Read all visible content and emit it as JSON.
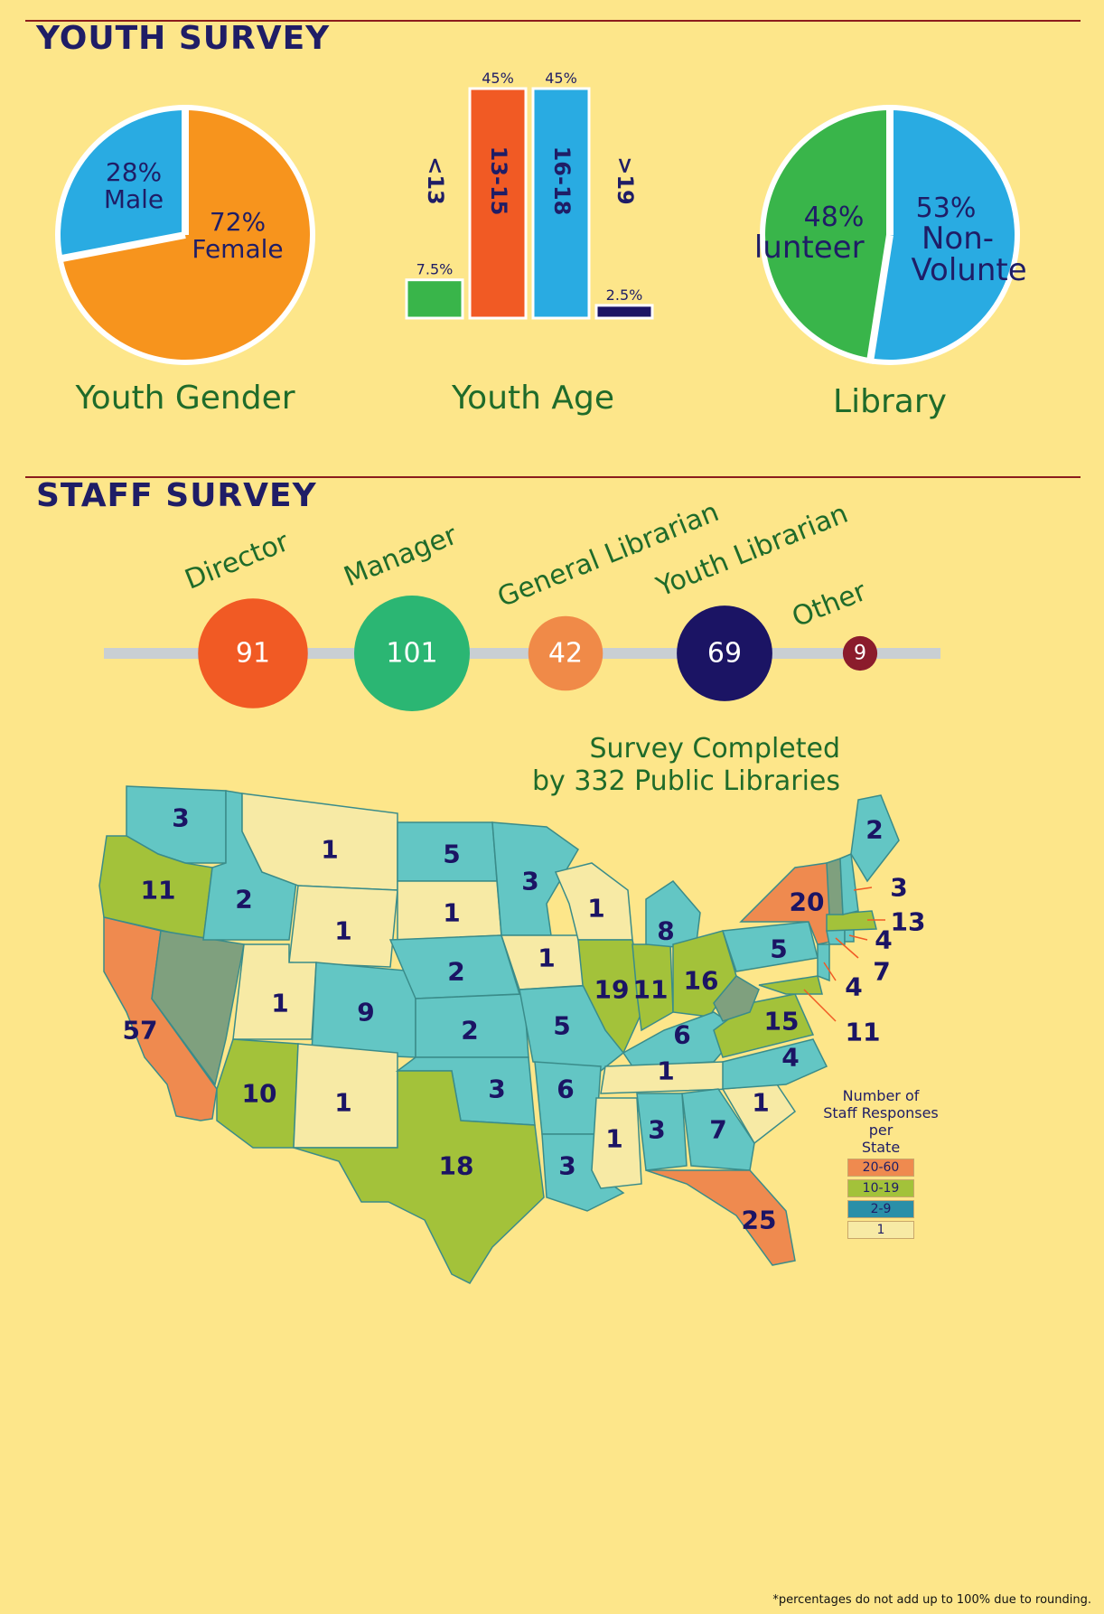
{
  "youth_section": {
    "title": "YOUTH SURVEY"
  },
  "staff_section": {
    "title": "STAFF SURVEY"
  },
  "colors": {
    "background": "#fde68a",
    "orange": "#f7941d",
    "blue": "#29abe2",
    "green": "#39b54a",
    "red_orange": "#f15a24",
    "navy": "#1b1464",
    "dark_text": "#1f1d66",
    "caption_green": "#1f6b2a"
  },
  "chart_data": [
    {
      "type": "pie",
      "title": "Youth Gender",
      "slices": [
        {
          "label": "Female",
          "value": 72,
          "value_label": "72%",
          "color": "#f7941d"
        },
        {
          "label": "Male",
          "value": 28,
          "value_label": "28%",
          "color": "#29abe2"
        }
      ]
    },
    {
      "type": "bar",
      "title": "Youth Age",
      "categories": [
        "<13",
        "13-15",
        "16-18",
        ">19"
      ],
      "values": [
        7.5,
        45,
        45,
        2.5
      ],
      "value_labels": [
        "7.5%",
        "45%",
        "45%",
        "2.5%"
      ],
      "colors": [
        "#39b54a",
        "#f15a24",
        "#29abe2",
        "#1b1464"
      ],
      "ylim": [
        0,
        45
      ]
    },
    {
      "type": "pie",
      "title": "Library",
      "slices": [
        {
          "label": "Non-Volunteer",
          "value": 53,
          "value_label": "53%",
          "color": "#29abe2"
        },
        {
          "label": "Volunteer",
          "value": 48,
          "value_label": "48%",
          "color": "#39b54a"
        }
      ]
    },
    {
      "type": "bubble-timeline",
      "categories": [
        "Director",
        "Manager",
        "General Librarian",
        "Youth Librarian",
        "Other"
      ],
      "values": [
        91,
        101,
        42,
        69,
        9
      ],
      "colors": [
        "#f15a24",
        "#2bb673",
        "#f08a48",
        "#1b1464",
        "#8b1c2c"
      ]
    },
    {
      "type": "map",
      "title": "Survey Completed by 332 Public Libraries",
      "legend_title": "Number of Staff Responses per State",
      "bins": [
        {
          "label": "20-60",
          "color": "#ef8a4f"
        },
        {
          "label": "10-19",
          "color": "#a3c23a"
        },
        {
          "label": "2-9",
          "color": "#2a8fa8"
        },
        {
          "label": "1",
          "color": "#f7eaa5"
        }
      ]
    }
  ],
  "map": {
    "state_values": {
      "WA": "3",
      "OR": "11",
      "CA": "57",
      "ID": "2",
      "MT": "1",
      "WY": "1",
      "UT": "1",
      "CO": "9",
      "AZ": "10",
      "NM": "1",
      "ND": "5",
      "SD": "1",
      "NE": "2",
      "KS": "2",
      "OK": "3",
      "TX": "18",
      "MN": "3",
      "IA": "1",
      "MO": "5",
      "AR": "6",
      "LA": "3",
      "WI": "1",
      "IL": "19",
      "IN": "11",
      "MI": "8",
      "OH": "16",
      "KY": "6",
      "TN": "1",
      "MS": "1",
      "AL": "3",
      "GA": "7",
      "FL": "25",
      "SC": "1",
      "NC": "4",
      "VA": "15",
      "PA": "5",
      "NY": "20",
      "ME": "2",
      "NH": "3",
      "MA": "13",
      "RI": "4",
      "CT": "7",
      "NJ": "4",
      "MD": "11"
    }
  },
  "footnote": "*percentages do not add up to 100% due to rounding."
}
